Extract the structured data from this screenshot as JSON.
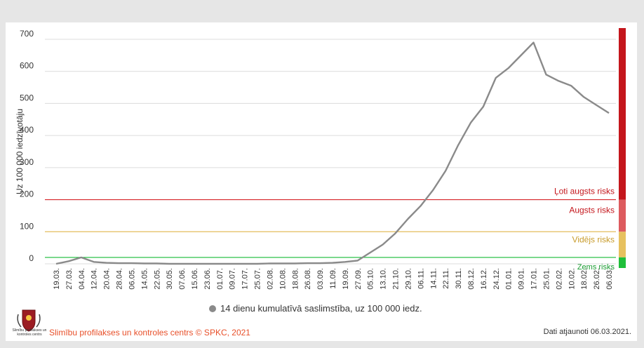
{
  "chart_data": {
    "type": "line",
    "ylabel": "Uz 100 000 iedzīvotāju",
    "ylim": [
      0,
      700
    ],
    "yticks": [
      0,
      100,
      200,
      300,
      400,
      500,
      600,
      700
    ],
    "x_tick_labels": [
      "19.03.",
      "27.03.",
      "04.04.",
      "12.04.",
      "20.04.",
      "28.04.",
      "06.05.",
      "14.05.",
      "22.05.",
      "30.05.",
      "07.06.",
      "15.06.",
      "23.06.",
      "01.07.",
      "09.07.",
      "17.07.",
      "25.07.",
      "02.08.",
      "10.08.",
      "18.08.",
      "26.08.",
      "03.09.",
      "11.09.",
      "19.09.",
      "27.09.",
      "05.10.",
      "13.10.",
      "21.10.",
      "29.10.",
      "06.11.",
      "14.11.",
      "22.11.",
      "30.11.",
      "08.12.",
      "16.12.",
      "24.12.",
      "01.01.",
      "09.01.",
      "17.01.",
      "25.01.",
      "02.02.",
      "10.02.",
      "18.02.",
      "26.02.",
      "06.03."
    ],
    "series": [
      {
        "name": "14 dienu kumulatīvā saslimstība, uz 100 000 iedz.",
        "color": "#8a8a8a",
        "values": [
          0,
          8,
          20,
          6,
          3,
          2,
          2,
          1,
          1,
          0,
          0,
          0,
          0,
          0,
          0,
          0,
          0,
          1,
          1,
          1,
          2,
          2,
          3,
          6,
          10,
          35,
          60,
          95,
          140,
          180,
          230,
          290,
          370,
          440,
          490,
          580,
          610,
          650,
          690,
          590,
          570,
          555,
          520,
          495,
          470
        ]
      }
    ],
    "risk_lines": [
      {
        "value": 200,
        "label": "Ļoti augsts risks",
        "color": "#d7262a"
      },
      {
        "value": 100,
        "label": "Vidējs risks",
        "color": "#e7c15f"
      },
      {
        "value": 20,
        "label": "Zems risks",
        "color": "#2cc24a"
      }
    ],
    "risk_bands": [
      {
        "from": 200,
        "to": 700,
        "label": "Ļoti augsts risks",
        "color": "#c4161c"
      },
      {
        "from": 100,
        "to": 200,
        "label": "Augsts risks",
        "color": "#dd5b5e"
      },
      {
        "from": 20,
        "to": 100,
        "label": "Vidējs risks",
        "color": "#e7c15f"
      },
      {
        "from": 0,
        "to": 20,
        "label": "Zems risks",
        "color": "#1fbf3a"
      }
    ]
  },
  "footer": {
    "source": "Slimību profilakses un kontroles centrs © SPKC, 2021",
    "updated": "Dati atjaunoti 06.03.2021.",
    "logo_text": "Slimību profilakses un kontroles centrs"
  }
}
